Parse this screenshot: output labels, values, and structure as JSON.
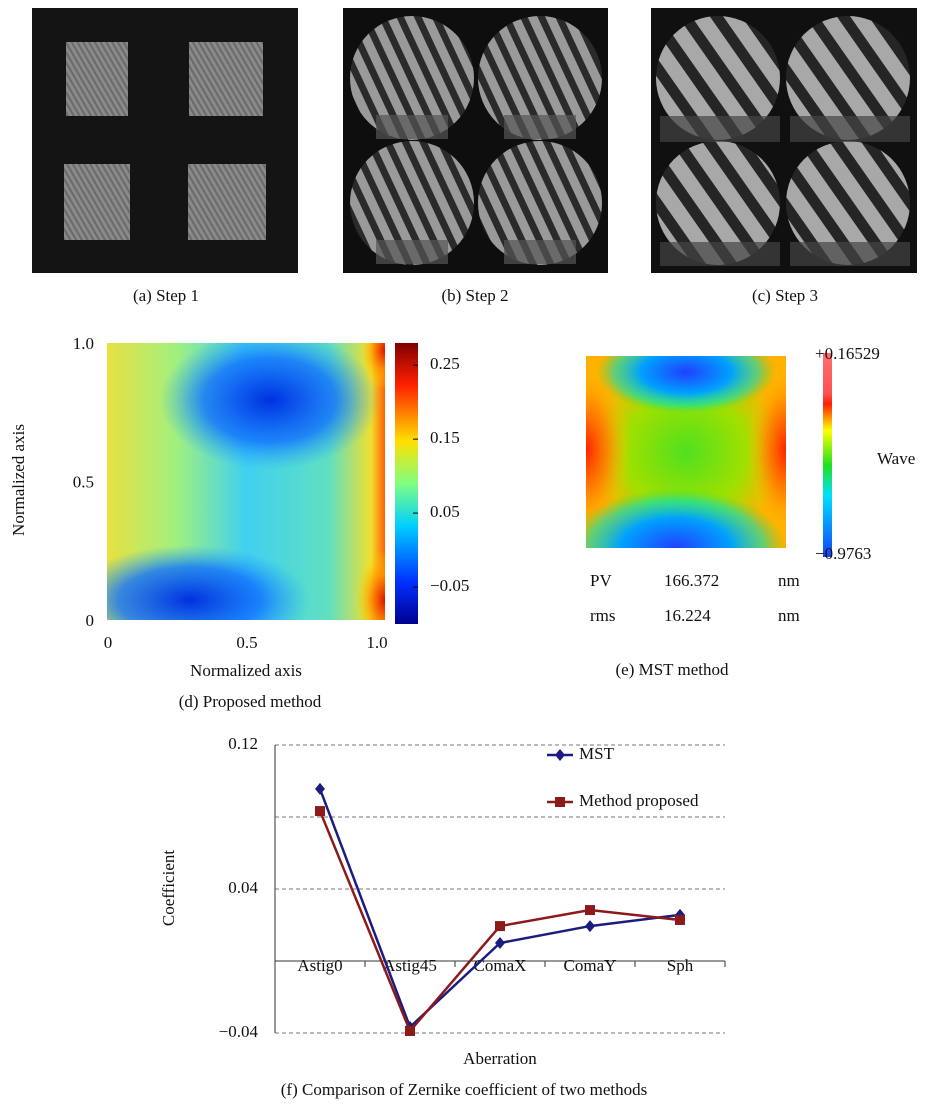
{
  "panels": {
    "a": {
      "caption": "(a) Step 1"
    },
    "b": {
      "caption": "(b) Step 2"
    },
    "c": {
      "caption": "(c) Step 3"
    }
  },
  "chart_data": [
    {
      "type": "heatmap",
      "caption": "(d) Proposed method",
      "xlabel": "Normalized axis",
      "ylabel": "Normalized axis",
      "xlim": [
        0,
        1
      ],
      "ylim": [
        0,
        1
      ],
      "xticks": [
        0,
        0.5,
        {
          "value": 1,
          "label": "1.0"
        }
      ],
      "yticks": [
        0,
        0.5,
        {
          "value": 1,
          "label": "1.0"
        }
      ],
      "clim": [
        -0.1,
        0.28
      ],
      "cticks": [
        {
          "value": -0.05,
          "label": "−0.05"
        },
        0.05,
        0.15,
        0.25
      ]
    },
    {
      "type": "heatmap",
      "caption": "(e) MST method",
      "colorbar_label": "Wave",
      "clim": [
        -0.9763,
        0.16529
      ],
      "cticks": [
        {
          "value": -0.9763,
          "label": "−0.9763"
        },
        {
          "value": 0.16529,
          "label": "+0.16529"
        }
      ],
      "stats": [
        {
          "name": "PV",
          "value": 166.372,
          "unit": "nm"
        },
        {
          "name": "rms",
          "value": 16.224,
          "unit": "nm"
        }
      ]
    },
    {
      "type": "line",
      "caption": "(f) Comparison of Zernike coefficient of two methods",
      "xlabel": "Aberration",
      "ylabel": "Coefficient",
      "categories": [
        "Astig0",
        "Astig45",
        "ComaX",
        "ComaY",
        "Sph"
      ],
      "ylim": [
        -0.04,
        0.12
      ],
      "yticks": [
        {
          "value": -0.04,
          "label": "−0.04"
        },
        0.04,
        {
          "value": 0.08,
          "label": null
        },
        0.12
      ],
      "grid": true,
      "series": [
        {
          "name": "MST",
          "color": "#1c1c80",
          "marker": "diamond",
          "values": [
            0.0956,
            -0.0367,
            0.01,
            0.0194,
            0.0256
          ]
        },
        {
          "name": "Method proposed",
          "color": "#8b1a1a",
          "marker": "square",
          "values": [
            0.0833,
            -0.0389,
            0.0194,
            0.0283,
            0.0228
          ]
        }
      ]
    }
  ]
}
